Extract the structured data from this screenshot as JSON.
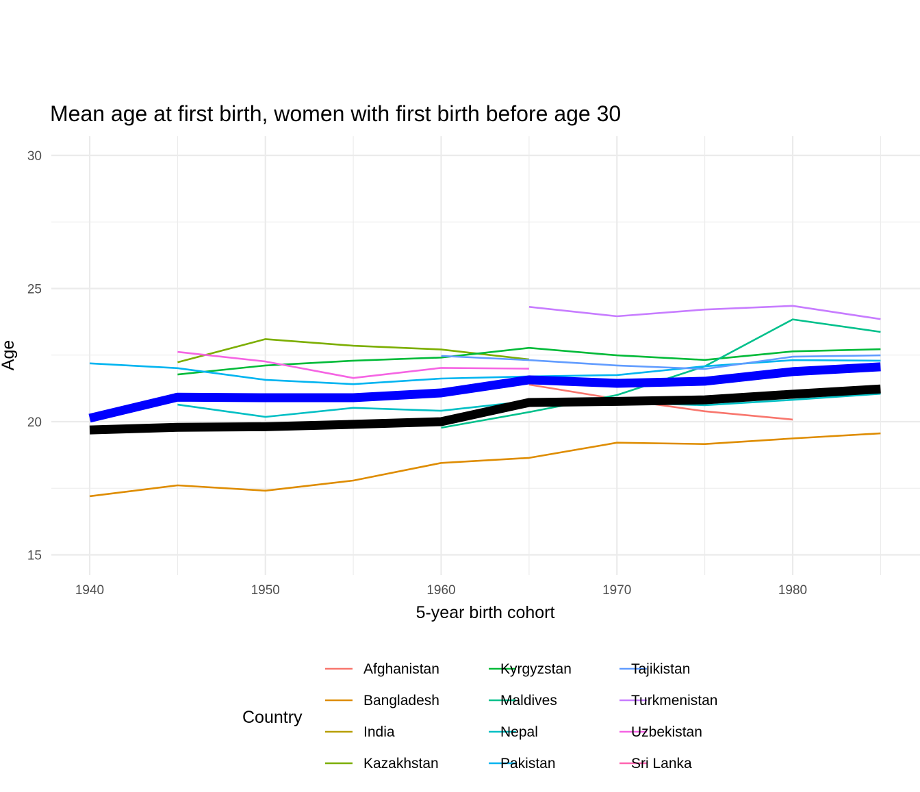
{
  "chart_data": {
    "type": "line",
    "title": "Mean age at first birth, women with first birth before age 30",
    "xlabel": "5-year birth cohort",
    "ylabel": "Age",
    "xlim": [
      1938,
      1987
    ],
    "ylim": [
      14.3,
      30.7
    ],
    "x_ticks": [
      1940,
      1950,
      1960,
      1970,
      1980
    ],
    "y_ticks": [
      15,
      20,
      25,
      30
    ],
    "grid": true,
    "legend_title": "Country",
    "legend_position": "bottom",
    "x": [
      1940,
      1945,
      1950,
      1955,
      1960,
      1965,
      1970,
      1975,
      1980,
      1985
    ],
    "series": [
      {
        "name": "Afghanistan",
        "color": "#F8766D",
        "values": [
          null,
          null,
          null,
          null,
          null,
          21.39,
          20.85,
          20.39,
          20.08,
          null
        ]
      },
      {
        "name": "Bangladesh",
        "color": "#DE8C00",
        "values": [
          17.2,
          17.61,
          17.41,
          17.79,
          18.45,
          18.64,
          19.21,
          19.16,
          19.37,
          19.56
        ]
      },
      {
        "name": "India",
        "color": "#B79F00",
        "values": [
          19.68,
          19.78,
          19.8,
          19.88,
          19.97,
          null,
          null,
          null,
          null,
          null
        ]
      },
      {
        "name": "Kazakhstan",
        "color": "#7CAE00",
        "values": [
          null,
          22.23,
          23.1,
          22.85,
          22.71,
          22.34,
          null,
          null,
          null,
          null
        ]
      },
      {
        "name": "Kyrgyzstan",
        "color": "#00BA38",
        "values": [
          null,
          21.77,
          22.11,
          22.29,
          22.41,
          22.77,
          22.49,
          22.32,
          22.64,
          22.72
        ]
      },
      {
        "name": "Maldives",
        "color": "#00C08B",
        "values": [
          null,
          null,
          null,
          null,
          19.77,
          20.36,
          21.0,
          22.08,
          23.84,
          23.37
        ]
      },
      {
        "name": "Nepal",
        "color": "#00BFC4",
        "values": [
          null,
          20.64,
          20.18,
          20.52,
          20.41,
          20.77,
          20.72,
          20.62,
          20.82,
          21.05
        ]
      },
      {
        "name": "Pakistan",
        "color": "#00B4F0",
        "values": [
          22.19,
          22.01,
          21.57,
          21.41,
          21.62,
          21.7,
          21.75,
          22.08,
          22.31,
          22.29
        ]
      },
      {
        "name": "Tajikistan",
        "color": "#619CFF",
        "values": [
          null,
          null,
          null,
          null,
          22.47,
          22.31,
          22.11,
          21.98,
          22.44,
          22.49
        ]
      },
      {
        "name": "Turkmenistan",
        "color": "#C77CFF",
        "values": [
          null,
          null,
          null,
          null,
          null,
          24.31,
          23.96,
          24.21,
          24.35,
          23.85
        ]
      },
      {
        "name": "Uzbekistan",
        "color": "#F564E3",
        "values": [
          null,
          22.62,
          22.26,
          21.64,
          22.02,
          21.99,
          null,
          null,
          null,
          null
        ]
      },
      {
        "name": "Sri Lanka",
        "color": "#FF64B0",
        "values": [
          null,
          null,
          null,
          null,
          null,
          null,
          null,
          null,
          null,
          null
        ]
      }
    ],
    "highlight_series": [
      {
        "color": "#0000FF",
        "values": [
          20.13,
          20.92,
          20.9,
          20.9,
          21.08,
          21.57,
          21.44,
          21.52,
          21.88,
          22.06
        ]
      },
      {
        "color": "#000000",
        "values": [
          19.69,
          19.79,
          19.81,
          19.9,
          20.0,
          20.72,
          20.76,
          20.82,
          21.03,
          21.23
        ]
      }
    ]
  }
}
